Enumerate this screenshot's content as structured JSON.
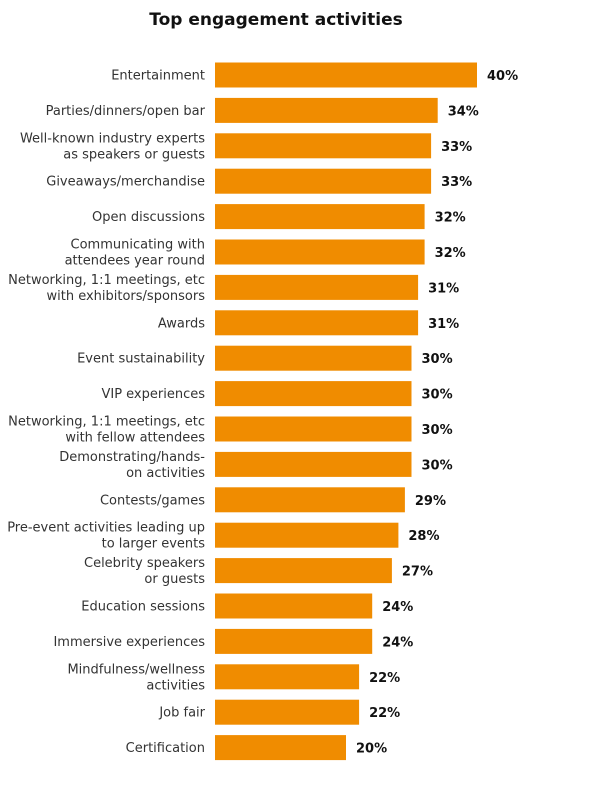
{
  "chart_data": {
    "type": "bar",
    "orientation": "horizontal",
    "title": "Top engagement activities",
    "categories": [
      "Entertainment",
      "Parties/dinners/open bar",
      "Well-known industry experts\nas speakers or guests",
      "Giveaways/merchandise",
      "Open discussions",
      "Communicating with\nattendees year round",
      "Networking, 1:1 meetings, etc\nwith exhibitors/sponsors",
      "Awards",
      "Event sustainability",
      "VIP experiences",
      "Networking, 1:1 meetings, etc\nwith fellow attendees",
      "Demonstrating/hands-\non activities",
      "Contests/games",
      "Pre-event activities leading up\nto larger events",
      "Celebrity speakers\nor guests",
      "Education sessions",
      "Immersive experiences",
      "Mindfulness/wellness\nactivities",
      "Job fair",
      "Certification"
    ],
    "values": [
      40,
      34,
      33,
      33,
      32,
      32,
      31,
      31,
      30,
      30,
      30,
      30,
      29,
      28,
      27,
      24,
      24,
      22,
      22,
      20
    ],
    "value_labels": [
      "40%",
      "34%",
      "33%",
      "33%",
      "32%",
      "32%",
      "31%",
      "31%",
      "30%",
      "30%",
      "30%",
      "30%",
      "29%",
      "28%",
      "27%",
      "24%",
      "24%",
      "22%",
      "22%",
      "20%"
    ],
    "unit": "%",
    "xlim": [
      0,
      40
    ],
    "grid": false,
    "legend": "none",
    "bar_color": "#F08C00"
  }
}
